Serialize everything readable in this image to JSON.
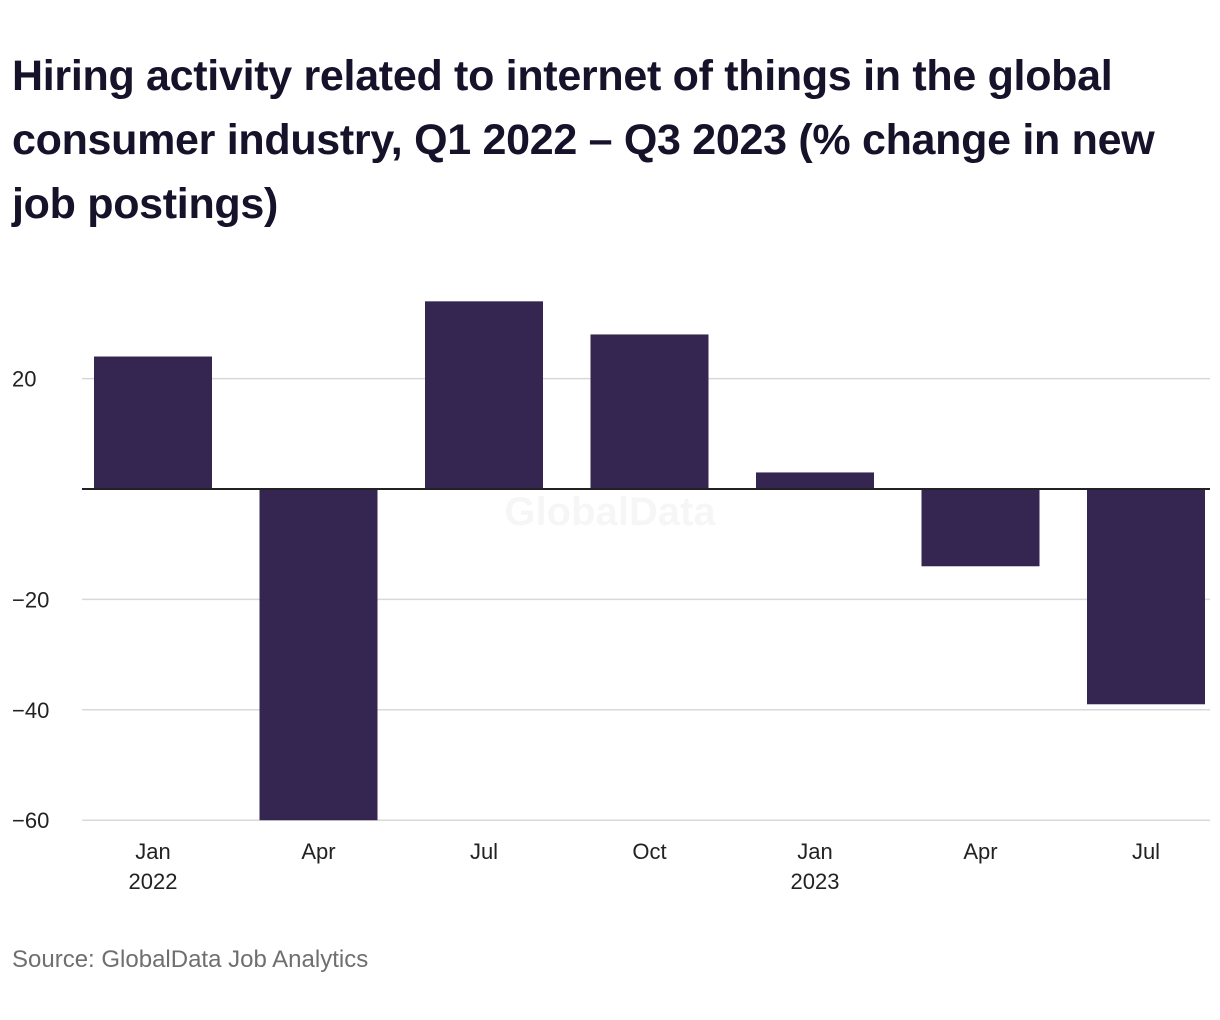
{
  "title": "Hiring activity related to internet of things in the global consumer industry, Q1 2022 – Q3 2023 (% change in new job postings)",
  "source": "Source: GlobalData Job Analytics",
  "watermark": "GlobalData",
  "colors": {
    "bar": "#352651",
    "grid": "#d9d9d9",
    "zero_line": "#222222",
    "text": "#15122a",
    "source_text": "#6f6f6f"
  },
  "chart_data": {
    "type": "bar",
    "title": "Hiring activity related to internet of things in the global consumer industry, Q1 2022 – Q3 2023 (% change in new job postings)",
    "xlabel": "",
    "ylabel": "",
    "categories": [
      "Jan 2022",
      "Apr 2022",
      "Jul 2022",
      "Oct 2022",
      "Jan 2023",
      "Apr 2023",
      "Jul 2023"
    ],
    "x_tick_labels": [
      {
        "line1": "Jan",
        "line2": "2022"
      },
      {
        "line1": "Apr",
        "line2": ""
      },
      {
        "line1": "Jul",
        "line2": ""
      },
      {
        "line1": "Oct",
        "line2": ""
      },
      {
        "line1": "Jan",
        "line2": "2023"
      },
      {
        "line1": "Apr",
        "line2": ""
      },
      {
        "line1": "Jul",
        "line2": ""
      }
    ],
    "values": [
      24,
      -60,
      34,
      28,
      3,
      -14,
      -39
    ],
    "ylim": [
      -60,
      36
    ],
    "y_ticks": [
      20,
      0,
      -20,
      -40,
      -60
    ],
    "y_tick_labels": [
      "20",
      "",
      "−20",
      "−40",
      "−60"
    ],
    "grid": true,
    "legend": "none"
  }
}
